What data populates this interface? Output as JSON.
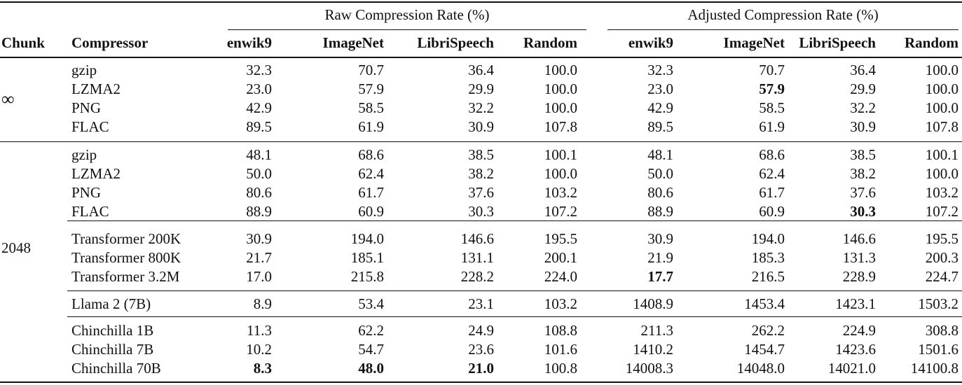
{
  "table": {
    "group_headers": [
      "Raw Compression Rate (%)",
      "Adjusted Compression Rate (%)"
    ],
    "columns": [
      "Chunk",
      "Compressor",
      "enwik9",
      "ImageNet",
      "LibriSpeech",
      "Random",
      "enwik9",
      "ImageNet",
      "LibriSpeech",
      "Random"
    ],
    "chunks": [
      "∞",
      "2048"
    ],
    "rows": [
      {
        "compressor": "gzip",
        "raw": [
          "32.3",
          "70.7",
          "36.4",
          "100.0"
        ],
        "adj": [
          "32.3",
          "70.7",
          "36.4",
          "100.0"
        ]
      },
      {
        "compressor": "LZMA2",
        "raw": [
          "23.0",
          "57.9",
          "29.9",
          "100.0"
        ],
        "adj": [
          "23.0",
          "57.9",
          "29.9",
          "100.0"
        ]
      },
      {
        "compressor": "PNG",
        "raw": [
          "42.9",
          "58.5",
          "32.2",
          "100.0"
        ],
        "adj": [
          "42.9",
          "58.5",
          "32.2",
          "100.0"
        ]
      },
      {
        "compressor": "FLAC",
        "raw": [
          "89.5",
          "61.9",
          "30.9",
          "107.8"
        ],
        "adj": [
          "89.5",
          "61.9",
          "30.9",
          "107.8"
        ]
      },
      {
        "compressor": "gzip",
        "raw": [
          "48.1",
          "68.6",
          "38.5",
          "100.1"
        ],
        "adj": [
          "48.1",
          "68.6",
          "38.5",
          "100.1"
        ]
      },
      {
        "compressor": "LZMA2",
        "raw": [
          "50.0",
          "62.4",
          "38.2",
          "100.0"
        ],
        "adj": [
          "50.0",
          "62.4",
          "38.2",
          "100.0"
        ]
      },
      {
        "compressor": "PNG",
        "raw": [
          "80.6",
          "61.7",
          "37.6",
          "103.2"
        ],
        "adj": [
          "80.6",
          "61.7",
          "37.6",
          "103.2"
        ]
      },
      {
        "compressor": "FLAC",
        "raw": [
          "88.9",
          "60.9",
          "30.3",
          "107.2"
        ],
        "adj": [
          "88.9",
          "60.9",
          "30.3",
          "107.2"
        ]
      },
      {
        "compressor": "Transformer 200K",
        "raw": [
          "30.9",
          "194.0",
          "146.6",
          "195.5"
        ],
        "adj": [
          "30.9",
          "194.0",
          "146.6",
          "195.5"
        ]
      },
      {
        "compressor": "Transformer 800K",
        "raw": [
          "21.7",
          "185.1",
          "131.1",
          "200.1"
        ],
        "adj": [
          "21.9",
          "185.3",
          "131.3",
          "200.3"
        ]
      },
      {
        "compressor": "Transformer 3.2M",
        "raw": [
          "17.0",
          "215.8",
          "228.2",
          "224.0"
        ],
        "adj": [
          "17.7",
          "216.5",
          "228.9",
          "224.7"
        ]
      },
      {
        "compressor": "Llama 2 (7B)",
        "raw": [
          "8.9",
          "53.4",
          "23.1",
          "103.2"
        ],
        "adj": [
          "1408.9",
          "1453.4",
          "1423.1",
          "1503.2"
        ]
      },
      {
        "compressor": "Chinchilla 1B",
        "raw": [
          "11.3",
          "62.2",
          "24.9",
          "108.8"
        ],
        "adj": [
          "211.3",
          "262.2",
          "224.9",
          "308.8"
        ]
      },
      {
        "compressor": "Chinchilla 7B",
        "raw": [
          "10.2",
          "54.7",
          "23.6",
          "101.6"
        ],
        "adj": [
          "1410.2",
          "1454.7",
          "1423.6",
          "1501.6"
        ]
      },
      {
        "compressor": "Chinchilla 70B",
        "raw": [
          "8.3",
          "48.0",
          "21.0",
          "100.8"
        ],
        "adj": [
          "14008.3",
          "14048.0",
          "14021.0",
          "14100.8"
        ]
      }
    ],
    "bold_cells": [
      {
        "row": 1,
        "group": "adj",
        "col": 1
      },
      {
        "row": 7,
        "group": "adj",
        "col": 2
      },
      {
        "row": 10,
        "group": "adj",
        "col": 0
      },
      {
        "row": 14,
        "group": "raw",
        "col": 0
      },
      {
        "row": 14,
        "group": "raw",
        "col": 1
      },
      {
        "row": 14,
        "group": "raw",
        "col": 2
      }
    ]
  }
}
